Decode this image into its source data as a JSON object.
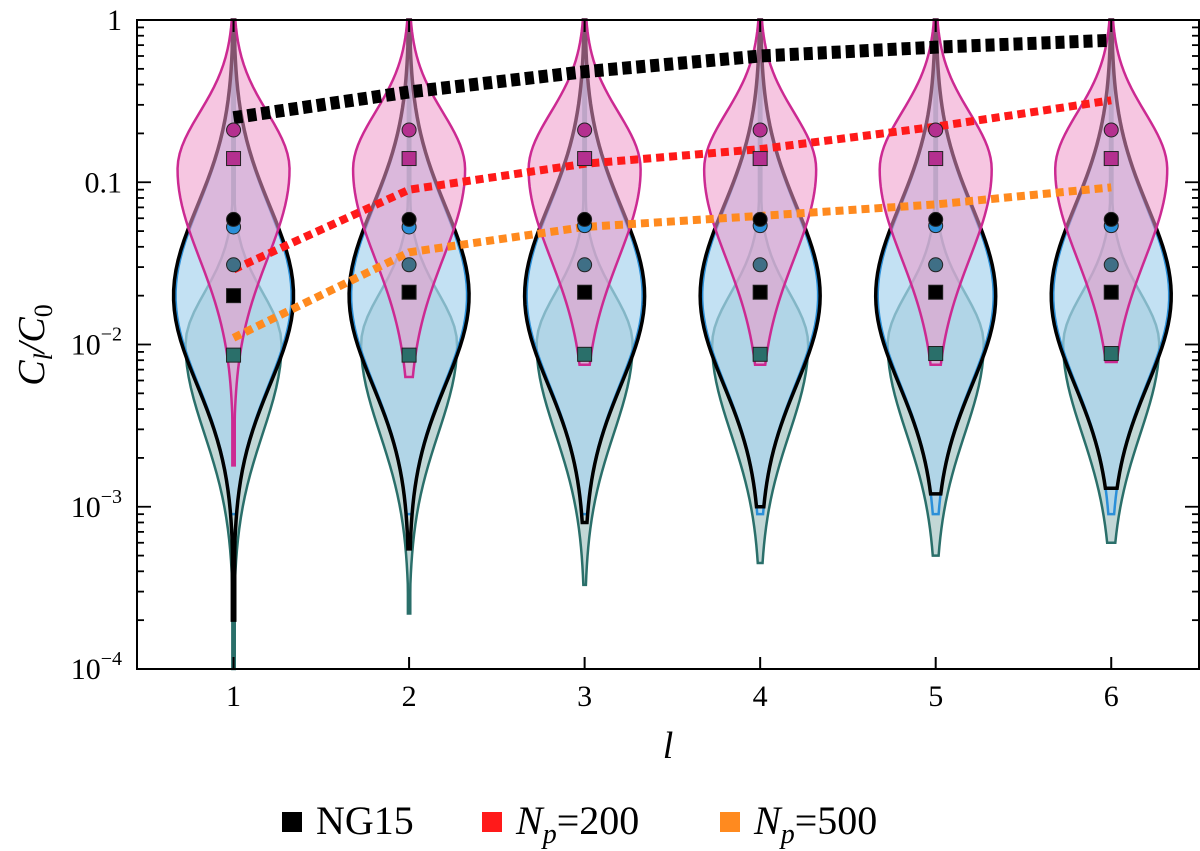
{
  "chart_data": {
    "type": "violin",
    "xlabel": "l",
    "ylabel": "C_l/C_0",
    "yscale": "log",
    "ylim": [
      0.0001,
      1
    ],
    "xlim": [
      0.45,
      6.5
    ],
    "x": [
      1,
      2,
      3,
      4,
      5,
      6
    ],
    "x_tick_labels": [
      "1",
      "2",
      "3",
      "4",
      "5",
      "6"
    ],
    "y_ticks": [
      {
        "value": 1,
        "label": "1"
      },
      {
        "value": 0.1,
        "label": "0.1"
      },
      {
        "value": 0.01,
        "label": "10",
        "exp": "−2"
      },
      {
        "value": 0.001,
        "label": "10",
        "exp": "−3"
      },
      {
        "value": 0.0001,
        "label": "10",
        "exp": "−4"
      }
    ],
    "violins": [
      {
        "name": "teal",
        "fill": "#a8c6c4",
        "stroke": "#2a6f6a",
        "marker": "square",
        "marker_fill": "#2a6f6a",
        "medians": [
          0.0086,
          0.0086,
          0.0087,
          0.0087,
          0.0088,
          0.0088
        ],
        "lower": [
          0.0001,
          0.00022,
          0.00033,
          0.00045,
          0.0005,
          0.0006
        ],
        "peak": [
          0.01,
          0.01,
          0.01,
          0.01,
          0.01,
          0.01
        ]
      },
      {
        "name": "blue",
        "fill": "#a9d4ee",
        "stroke": "#2b8fd8",
        "marker": "circle",
        "marker_fill": "#2b8fd8",
        "medians": [
          0.053,
          0.053,
          0.054,
          0.054,
          0.054,
          0.054
        ],
        "lower": [
          0.0009,
          0.0009,
          0.0009,
          0.0009,
          0.0009,
          0.0009
        ],
        "peak": [
          0.02,
          0.02,
          0.02,
          0.02,
          0.02,
          0.02
        ]
      },
      {
        "name": "black",
        "fill": "none",
        "stroke": "#000000",
        "marker": "square",
        "marker_fill": "#000000",
        "medians": [
          0.02,
          0.021,
          0.021,
          0.021,
          0.021,
          0.021
        ],
        "circle_markers": [
          0.059,
          0.059,
          0.059,
          0.059,
          0.059,
          0.059
        ],
        "lower": [
          0.0002,
          0.00055,
          0.0008,
          0.001,
          0.0012,
          0.0013
        ],
        "peak": [
          0.02,
          0.02,
          0.02,
          0.02,
          0.02,
          0.02
        ]
      },
      {
        "name": "magenta",
        "fill": "#ee97c8",
        "stroke": "#cc2a92",
        "marker": "square",
        "marker_fill": "#b4308f",
        "medians": [
          0.14,
          0.14,
          0.14,
          0.14,
          0.14,
          0.14
        ],
        "circle_markers": [
          0.21,
          0.21,
          0.21,
          0.21,
          0.21,
          0.21
        ],
        "dark_circles": [
          0.031,
          0.031,
          0.031,
          0.031,
          0.031,
          0.031
        ],
        "lower": [
          0.0018,
          0.0063,
          0.0075,
          0.0075,
          0.0075,
          0.0078
        ],
        "peak": [
          0.12,
          0.12,
          0.12,
          0.12,
          0.12,
          0.12
        ]
      }
    ],
    "series": [
      {
        "name": "NG15",
        "color": "#000000",
        "values": [
          0.25,
          0.36,
          0.48,
          0.6,
          0.68,
          0.75
        ]
      },
      {
        "name": "N_p=200",
        "color": "#ff1a1a",
        "values": [
          0.029,
          0.09,
          0.13,
          0.16,
          0.22,
          0.32
        ]
      },
      {
        "name": "N_p=500",
        "color": "#ff8a1f",
        "values": [
          0.011,
          0.037,
          0.053,
          0.062,
          0.073,
          0.093
        ]
      }
    ],
    "legend": [
      {
        "label": "NG15",
        "color": "#000000"
      },
      {
        "label": "N",
        "sub": "p",
        "rest": "=200",
        "color": "#ff1a1a"
      },
      {
        "label": "N",
        "sub": "p",
        "rest": "=500",
        "color": "#ff8a1f"
      }
    ],
    "legend_position": "bottom-center"
  }
}
